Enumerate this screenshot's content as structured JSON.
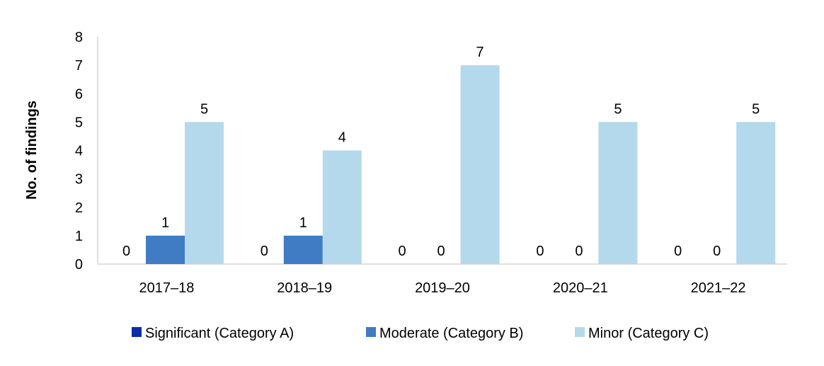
{
  "chart_data": {
    "type": "bar",
    "categories": [
      "2017–18",
      "2018–19",
      "2019–20",
      "2020–21",
      "2021–22"
    ],
    "series": [
      {
        "name": "Significant (Category A)",
        "values": [
          0,
          0,
          0,
          0,
          0
        ],
        "color": "#0b2fa8"
      },
      {
        "name": "Moderate (Category B)",
        "values": [
          1,
          1,
          0,
          0,
          0
        ],
        "color": "#3f7cc4"
      },
      {
        "name": "Minor (Category C)",
        "values": [
          5,
          4,
          7,
          5,
          5
        ],
        "color": "#b4d9ec"
      }
    ],
    "ylabel": "No. of findings",
    "ylim": [
      0,
      8
    ],
    "yticks": [
      "0",
      "1",
      "2",
      "3",
      "4",
      "5",
      "6",
      "7",
      "8"
    ],
    "grid": false,
    "legend": "bottom",
    "data_labels": true
  }
}
